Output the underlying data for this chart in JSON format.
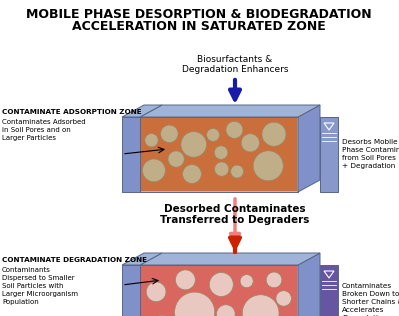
{
  "title_line1": "MOBILE PHASE DESORPTION & BIODEGRADATION",
  "title_line2": "ACCELERATION IN SATURATED ZONE",
  "title_fontsize": 9.0,
  "box1_label": "CONTAMINATE ADSORPTION ZONE",
  "box1_sub": "Contaminates Adsorbed\nin Soil Pores and on\nLarger Particles",
  "box1_right_label": "Desorbs Mobile\nPhase Contaminates\nfrom Soil Pores\n+ Degradation",
  "top_arrow_label": "Biosurfactants &\nDegradation Enhancers",
  "mid_arrow_label": "Desorbed Contaminates\nTransferred to Degraders",
  "box2_label": "CONTAMINATE DEGRADATION ZONE",
  "box2_sub": "Contaminants\nDispersed to Smaller\nSoil Particles with\nLarger Microorganism\nPopulation",
  "box2_right_label": "Contaminates\nBroken Down to\nShorter Chains &\nAccelerates\nDegradation",
  "blue_arrow_color": "#1a1aaa",
  "pink_arrow_color": "#f08080",
  "red_arrow_color": "#cc2200",
  "box_side_color": "#7a8cc8",
  "box_top_color": "#9aacd8",
  "left_panel_color": "#8898cc",
  "right_panel_color1": "#8898cc",
  "right_panel_color2": "#6655a0"
}
